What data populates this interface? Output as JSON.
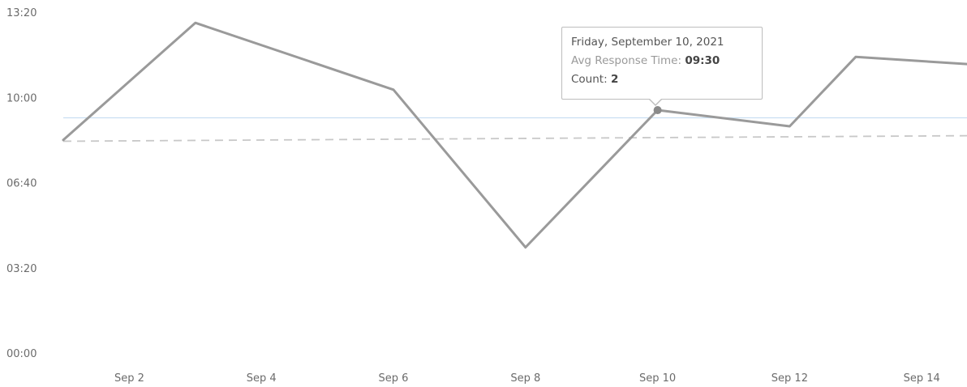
{
  "chart_data": {
    "type": "line",
    "title": "",
    "xlabel": "",
    "ylabel": "",
    "x_ticks": [
      "Sep 2",
      "Sep 4",
      "Sep 6",
      "Sep 8",
      "Sep 10",
      "Sep 12",
      "Sep 14"
    ],
    "y_ticks": [
      "00:00",
      "03:20",
      "06:40",
      "10:00",
      "13:20"
    ],
    "ylim": [
      0,
      800
    ],
    "y_unit": "minutes",
    "grid": false,
    "series": [
      {
        "color": "#9a9a9a",
        "points": [
          {
            "x": "Sep 1",
            "y": 500
          },
          {
            "x": "Sep 3",
            "y": 775
          },
          {
            "x": "Sep 6",
            "y": 618
          },
          {
            "x": "Sep 8",
            "y": 248
          },
          {
            "x": "Sep 10",
            "y": 570
          },
          {
            "x": "Sep 12",
            "y": 532
          },
          {
            "x": "Sep 13",
            "y": 695
          },
          {
            "x": "Sep 15",
            "y": 675
          }
        ]
      }
    ],
    "reference_lines": [
      {
        "style": "solid",
        "color": "#c9dff2",
        "y": 552
      },
      {
        "style": "dashed",
        "color": "#c8c8c8",
        "y_start": 497,
        "y_end": 510
      }
    ]
  },
  "tooltip": {
    "date": "Friday, September 10, 2021",
    "avg_label": "Avg Response Time: ",
    "avg_value": "09:30",
    "count_label": "Count: ",
    "count_value": "2"
  }
}
